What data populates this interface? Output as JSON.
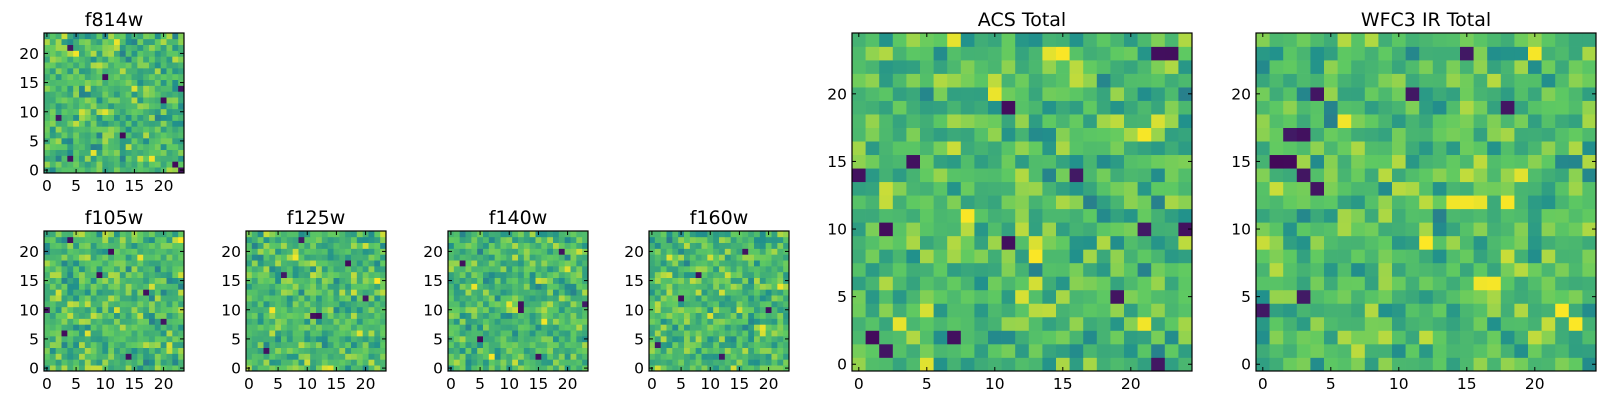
{
  "chart_data": [
    {
      "id": "f814w",
      "type": "heatmap",
      "title": "f814w",
      "grid_size": 24,
      "xticks": [
        0,
        5,
        10,
        15,
        20
      ],
      "yticks": [
        0,
        5,
        10,
        15,
        20
      ],
      "xlim": [
        -0.5,
        23.5
      ],
      "ylim": [
        -0.5,
        23.5
      ],
      "colormap": "viridis",
      "seed": 814,
      "dark_cells": [
        [
          4,
          2
        ],
        [
          22,
          1
        ],
        [
          23,
          0
        ],
        [
          2,
          9
        ],
        [
          10,
          16
        ],
        [
          20,
          12
        ],
        [
          4,
          21
        ],
        [
          13,
          6
        ],
        [
          23,
          14
        ]
      ],
      "bright_cells": [
        [
          5,
          20
        ],
        [
          8,
          3
        ],
        [
          15,
          14
        ],
        [
          18,
          2
        ],
        [
          10,
          10
        ],
        [
          12,
          22
        ]
      ],
      "grid": false
    },
    {
      "id": "f105w",
      "type": "heatmap",
      "title": "f105w",
      "grid_size": 24,
      "xticks": [
        0,
        5,
        10,
        15,
        20
      ],
      "yticks": [
        0,
        5,
        10,
        15,
        20
      ],
      "xlim": [
        -0.5,
        23.5
      ],
      "ylim": [
        -0.5,
        23.5
      ],
      "colormap": "viridis",
      "seed": 105,
      "dark_cells": [
        [
          0,
          10
        ],
        [
          4,
          22
        ],
        [
          9,
          16
        ],
        [
          14,
          2
        ],
        [
          3,
          6
        ],
        [
          20,
          8
        ],
        [
          11,
          20
        ],
        [
          17,
          13
        ]
      ],
      "bright_cells": [
        [
          2,
          13
        ],
        [
          7,
          6
        ],
        [
          16,
          19
        ],
        [
          21,
          4
        ],
        [
          12,
          10
        ],
        [
          23,
          22
        ]
      ],
      "grid": false
    },
    {
      "id": "f125w",
      "type": "heatmap",
      "title": "f125w",
      "grid_size": 24,
      "xticks": [
        0,
        5,
        10,
        15,
        20
      ],
      "yticks": [
        0,
        5,
        10,
        15,
        20
      ],
      "xlim": [
        -0.5,
        23.5
      ],
      "ylim": [
        -0.5,
        23.5
      ],
      "colormap": "viridis",
      "seed": 125,
      "dark_cells": [
        [
          11,
          9
        ],
        [
          12,
          9
        ],
        [
          6,
          16
        ],
        [
          20,
          12
        ],
        [
          3,
          3
        ],
        [
          17,
          18
        ],
        [
          9,
          22
        ]
      ],
      "bright_cells": [
        [
          13,
          0
        ],
        [
          14,
          0
        ],
        [
          4,
          10
        ],
        [
          19,
          6
        ],
        [
          8,
          19
        ],
        [
          22,
          15
        ]
      ],
      "grid": false
    },
    {
      "id": "f140w",
      "type": "heatmap",
      "title": "f140w",
      "grid_size": 24,
      "xticks": [
        0,
        5,
        10,
        15,
        20
      ],
      "yticks": [
        0,
        5,
        10,
        15,
        20
      ],
      "xlim": [
        -0.5,
        23.5
      ],
      "ylim": [
        -0.5,
        23.5
      ],
      "colormap": "viridis",
      "seed": 140,
      "dark_cells": [
        [
          12,
          11
        ],
        [
          12,
          10
        ],
        [
          23,
          11
        ],
        [
          5,
          5
        ],
        [
          15,
          2
        ],
        [
          2,
          18
        ],
        [
          19,
          20
        ]
      ],
      "bright_cells": [
        [
          10,
          11
        ],
        [
          4,
          14
        ],
        [
          16,
          8
        ],
        [
          7,
          2
        ],
        [
          20,
          17
        ]
      ],
      "grid": false
    },
    {
      "id": "f160w",
      "type": "heatmap",
      "title": "f160w",
      "grid_size": 24,
      "xticks": [
        0,
        5,
        10,
        15,
        20
      ],
      "yticks": [
        0,
        5,
        10,
        15,
        20
      ],
      "xlim": [
        -0.5,
        23.5
      ],
      "ylim": [
        -0.5,
        23.5
      ],
      "colormap": "viridis",
      "seed": 160,
      "dark_cells": [
        [
          8,
          16
        ],
        [
          20,
          10
        ],
        [
          1,
          4
        ],
        [
          12,
          2
        ],
        [
          16,
          20
        ],
        [
          5,
          12
        ]
      ],
      "bright_cells": [
        [
          19,
          7
        ],
        [
          19,
          6
        ],
        [
          3,
          19
        ],
        [
          10,
          9
        ],
        [
          22,
          14
        ],
        [
          14,
          0
        ]
      ],
      "grid": false
    },
    {
      "id": "acs-total",
      "type": "heatmap",
      "title": "ACS Total",
      "grid_size": 25,
      "xticks": [
        0,
        5,
        10,
        15,
        20
      ],
      "yticks": [
        0,
        5,
        10,
        15,
        20
      ],
      "xlim": [
        -0.5,
        24.5
      ],
      "ylim": [
        -0.5,
        24.5
      ],
      "colormap": "viridis",
      "seed": 999,
      "dark_cells": [
        [
          22,
          23
        ],
        [
          23,
          23
        ],
        [
          11,
          19
        ],
        [
          4,
          15
        ],
        [
          0,
          14
        ],
        [
          16,
          14
        ],
        [
          2,
          10
        ],
        [
          21,
          10
        ],
        [
          24,
          10
        ],
        [
          11,
          9
        ],
        [
          19,
          5
        ],
        [
          1,
          2
        ],
        [
          7,
          2
        ],
        [
          2,
          1
        ],
        [
          22,
          0
        ]
      ],
      "bright_cells": [
        [
          14,
          23
        ],
        [
          15,
          23
        ],
        [
          7,
          24
        ],
        [
          10,
          20
        ],
        [
          21,
          17
        ],
        [
          22,
          18
        ],
        [
          8,
          11
        ],
        [
          13,
          9
        ],
        [
          13,
          8
        ],
        [
          5,
          4
        ],
        [
          12,
          5
        ],
        [
          3,
          3
        ],
        [
          21,
          3
        ],
        [
          5,
          0
        ]
      ],
      "grid": false
    },
    {
      "id": "wfc3-ir-total",
      "type": "heatmap",
      "title": "WFC3 IR Total",
      "grid_size": 25,
      "xticks": [
        0,
        5,
        10,
        15,
        20
      ],
      "yticks": [
        0,
        5,
        10,
        15,
        20
      ],
      "xlim": [
        -0.5,
        24.5
      ],
      "ylim": [
        -0.5,
        24.5
      ],
      "colormap": "viridis",
      "seed": 1600,
      "dark_cells": [
        [
          2,
          17
        ],
        [
          3,
          17
        ],
        [
          1,
          15
        ],
        [
          2,
          15
        ],
        [
          3,
          14
        ],
        [
          4,
          13
        ],
        [
          18,
          19
        ],
        [
          4,
          20
        ],
        [
          0,
          4
        ],
        [
          3,
          5
        ],
        [
          15,
          23
        ],
        [
          11,
          20
        ]
      ],
      "bright_cells": [
        [
          14,
          12
        ],
        [
          15,
          12
        ],
        [
          16,
          12
        ],
        [
          18,
          12
        ],
        [
          16,
          6
        ],
        [
          17,
          6
        ],
        [
          19,
          14
        ],
        [
          22,
          4
        ],
        [
          23,
          3
        ],
        [
          12,
          9
        ],
        [
          6,
          18
        ],
        [
          20,
          23
        ]
      ],
      "grid": false
    }
  ]
}
